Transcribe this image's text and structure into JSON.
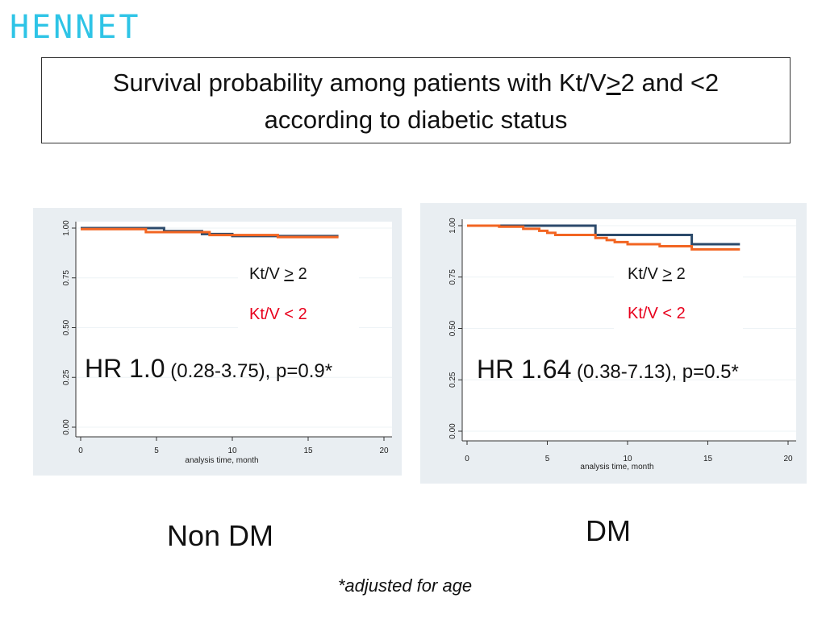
{
  "header": {
    "logo_text": "HENNET",
    "title_pre": "Survival probability among patients with Kt/V",
    "title_ge": ">",
    "title_post": "2 and <2",
    "title_line2": "according to diabetic status"
  },
  "colors": {
    "ge2": "#2c4a6b",
    "lt2": "#f26522",
    "lt2_label": "#e8001c",
    "panel_bg": "#e9eef2",
    "logo": "#2ec4e6"
  },
  "footnote": "*adjusted for age",
  "chart_data": [
    {
      "type": "line",
      "step": true,
      "caption": "Non DM",
      "xlabel": "analysis time, month",
      "x_ticks": [
        "0",
        "5",
        "10",
        "15",
        "20"
      ],
      "y_ticks": [
        "0.00",
        "0.25",
        "0.50",
        "0.75",
        "1.00"
      ],
      "xlim": [
        0,
        20
      ],
      "ylim": [
        0,
        1
      ],
      "legend": {
        "ge_pre": "Kt/V ",
        "ge_sym": ">",
        "ge_post": " 2",
        "lt": "Kt/V < 2"
      },
      "hr_main": "HR 1.0",
      "hr_detail": " (0.28-3.75), p=0.9*",
      "series": [
        {
          "name": "Kt/V > 2",
          "color": "#2c4a6b",
          "x": [
            0,
            5.5,
            8,
            10,
            17
          ],
          "y": [
            1.0,
            0.985,
            0.97,
            0.96,
            0.96
          ]
        },
        {
          "name": "Kt/V < 2",
          "color": "#f26522",
          "x": [
            0,
            4.3,
            8.5,
            13,
            17
          ],
          "y": [
            0.995,
            0.98,
            0.965,
            0.955,
            0.955
          ]
        }
      ]
    },
    {
      "type": "line",
      "step": true,
      "caption": "DM",
      "xlabel": "analysis time, month",
      "x_ticks": [
        "0",
        "5",
        "10",
        "15",
        "20"
      ],
      "y_ticks": [
        "0.00",
        "0.25",
        "0.50",
        "0.75",
        "1.00"
      ],
      "xlim": [
        0,
        20
      ],
      "ylim": [
        0,
        1
      ],
      "legend": {
        "ge_pre": "Kt/V ",
        "ge_sym": ">",
        "ge_post": " 2",
        "lt": "Kt/V < 2"
      },
      "hr_main": "HR 1.64",
      "hr_detail": " (0.38-7.13), p=0.5*",
      "series": [
        {
          "name": "Kt/V > 2",
          "color": "#2c4a6b",
          "x": [
            0,
            8,
            14,
            17
          ],
          "y": [
            1.0,
            0.955,
            0.91,
            0.91
          ]
        },
        {
          "name": "Kt/V < 2",
          "color": "#f26522",
          "x": [
            0,
            2,
            3.5,
            4.5,
            5,
            5.5,
            8,
            8.7,
            9.2,
            10,
            12,
            14,
            17
          ],
          "y": [
            1.0,
            0.995,
            0.985,
            0.975,
            0.965,
            0.955,
            0.94,
            0.93,
            0.92,
            0.91,
            0.9,
            0.885,
            0.885
          ]
        }
      ]
    }
  ]
}
